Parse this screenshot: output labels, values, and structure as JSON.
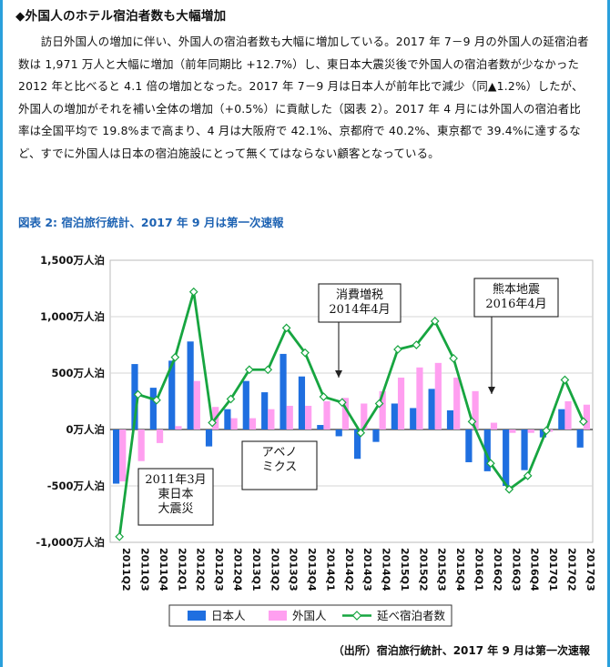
{
  "heading": "◆外国人のホテル宿泊者数も大幅増加",
  "paragraph": "訪日外国人の増加に伴い、外国人の宿泊者数も大幅に増加している。2017 年 7－9 月の外国人の延宿泊者数は 1,971 万人と大幅に増加（前年同期比 +12.7%）し、東日本大震災後で外国人の宿泊者数が少なかった 2012 年と比べると 4.1 倍の増加となった。2017 年 7－9 月は日本人が前年比で減少（同▲1.2%）したが、外国人の増加がそれを補い全体の増加（+0.5%）に貢献した（図表 2）。2017 年 4 月には外国人の宿泊者比率は全国平均で 19.8%まで高まり、4 月は大阪府で 42.1%、京都府で 40.2%、東京都で 39.4%に達するなど、すでに外国人は日本の宿泊施設にとって無くてはならない顧客となっている。",
  "figure_title": "図表 2: 宿泊旅行統計、2017 年 9 月は第一次速報",
  "source": "（出所）宿泊旅行統計、2017 年 9 月は第一次速報",
  "colors": {
    "japanese": "#1f6fe0",
    "foreign": "#ff9ff0",
    "total": "#17a540",
    "frame": "#2aa0dc"
  },
  "chart_data": {
    "type": "bar",
    "categories": [
      "2011Q2",
      "2011Q3",
      "2011Q4",
      "2012Q1",
      "2012Q2",
      "2012Q3",
      "2012Q4",
      "2013Q1",
      "2013Q2",
      "2013Q3",
      "2013Q4",
      "2014Q1",
      "2014Q2",
      "2014Q3",
      "2014Q4",
      "2015Q1",
      "2015Q2",
      "2015Q3",
      "2015Q4",
      "2016Q1",
      "2016Q2",
      "2016Q3",
      "2016Q4",
      "2017Q1",
      "2017Q2",
      "2017Q3"
    ],
    "series": [
      {
        "name": "日本人",
        "type": "bar",
        "values": [
          -480,
          580,
          370,
          610,
          780,
          -150,
          180,
          430,
          330,
          670,
          470,
          40,
          -60,
          -260,
          -110,
          230,
          190,
          360,
          170,
          -290,
          -370,
          -500,
          -360,
          -70,
          180,
          -160
        ]
      },
      {
        "name": "外国人",
        "type": "bar",
        "values": [
          -460,
          -280,
          -120,
          30,
          430,
          200,
          100,
          100,
          180,
          210,
          210,
          250,
          280,
          230,
          340,
          460,
          550,
          590,
          460,
          340,
          60,
          -30,
          -30,
          -20,
          250,
          220
        ]
      },
      {
        "name": "延べ宿泊者数",
        "type": "line",
        "values": [
          -950,
          310,
          260,
          640,
          1220,
          60,
          270,
          530,
          530,
          900,
          680,
          290,
          240,
          -30,
          230,
          710,
          750,
          960,
          630,
          70,
          -300,
          -530,
          -410,
          -10,
          440,
          70
        ]
      }
    ],
    "ylim": [
      -1000,
      1500
    ],
    "yticks": [
      -1000,
      -500,
      0,
      500,
      1000,
      1500
    ],
    "ytick_labels": [
      "-1,000万人泊",
      "-500万人泊",
      "0万人泊",
      "500万人泊",
      "1,000万人泊",
      "1,500万人泊"
    ],
    "annotations": [
      {
        "label": "2011年3月 東日本 大震災"
      },
      {
        "label": "アベノ ミクス"
      },
      {
        "label": "消費増税 2014年4月"
      },
      {
        "label": "熊本地震 2016年4月"
      }
    ],
    "legend": {
      "position": "bottom",
      "items": [
        "日本人",
        "外国人",
        "延べ宿泊者数"
      ]
    }
  }
}
